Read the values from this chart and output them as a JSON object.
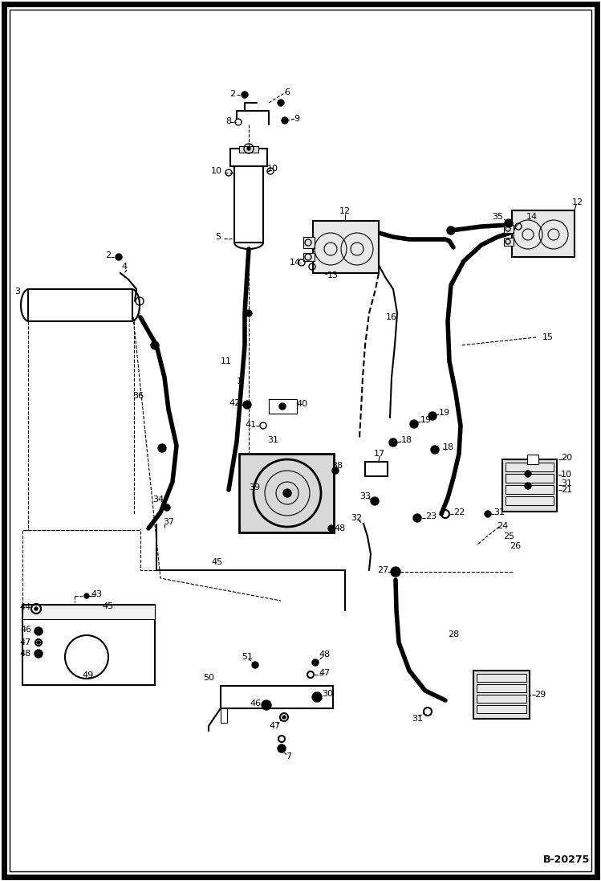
{
  "bg_color": "#ffffff",
  "border_color": "#000000",
  "diagram_code": "B-20275",
  "fig_width": 7.49,
  "fig_height": 10.97,
  "dpi": 100,
  "lw_thin": 0.8,
  "lw_med": 1.5,
  "lw_thick": 4.0
}
